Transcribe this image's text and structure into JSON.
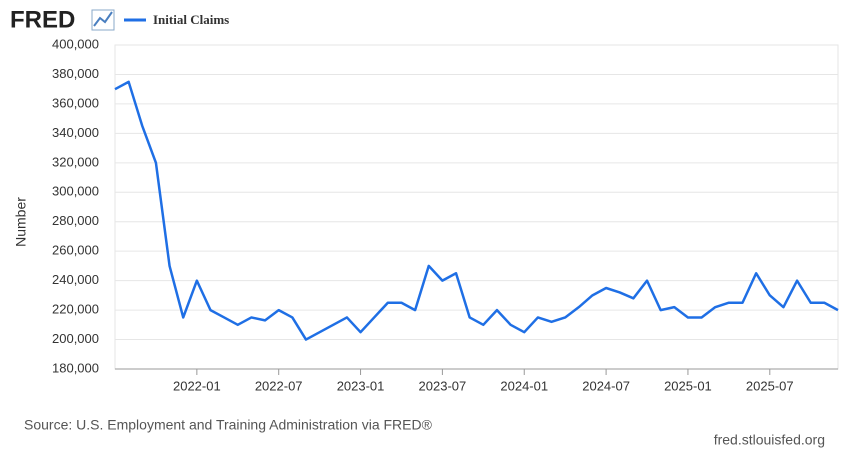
{
  "logo": "FRED",
  "source": "Source: U.S. Employment and Training Administration via FRED®",
  "url": "fred.stlouisfed.org",
  "chart_data": {
    "type": "line",
    "y_label": "Number",
    "x": [
      "2021-07",
      "2021-08",
      "2021-09",
      "2021-10",
      "2021-11",
      "2021-12",
      "2022-01",
      "2022-02",
      "2022-03",
      "2022-04",
      "2022-05",
      "2022-06",
      "2022-07",
      "2022-08",
      "2022-09",
      "2022-10",
      "2022-11",
      "2022-12",
      "2023-01",
      "2023-02",
      "2023-03",
      "2023-04",
      "2023-05",
      "2023-06",
      "2023-07",
      "2023-08",
      "2023-09",
      "2023-10",
      "2023-11",
      "2023-12",
      "2024-01",
      "2024-02",
      "2024-03",
      "2024-04",
      "2024-05",
      "2024-06",
      "2024-07",
      "2024-08",
      "2024-09",
      "2024-10",
      "2024-11",
      "2024-12",
      "2025-01",
      "2025-02",
      "2025-03",
      "2025-04",
      "2025-05",
      "2025-06",
      "2025-07",
      "2025-08",
      "2025-09",
      "2025-10",
      "2025-11",
      "2025-12"
    ],
    "series": [
      {
        "name": "Initial Claims",
        "color": "#1f6fe5",
        "values": [
          370000,
          375000,
          345000,
          320000,
          250000,
          215000,
          240000,
          220000,
          215000,
          210000,
          215000,
          213000,
          220000,
          215000,
          200000,
          205000,
          210000,
          215000,
          205000,
          215000,
          225000,
          225000,
          220000,
          250000,
          240000,
          245000,
          215000,
          210000,
          220000,
          210000,
          205000,
          215000,
          212000,
          215000,
          222000,
          230000,
          235000,
          232000,
          228000,
          240000,
          220000,
          222000,
          215000,
          215000,
          222000,
          225000,
          225000,
          245000,
          230000,
          222000,
          240000,
          225000,
          225000,
          220000
        ]
      }
    ],
    "xlim": [
      "2021-07",
      "2025-12"
    ],
    "xticks": [
      "2022-01",
      "2022-07",
      "2023-01",
      "2023-07",
      "2024-01",
      "2024-07",
      "2025-01",
      "2025-07"
    ],
    "ylim": [
      180000,
      400000
    ],
    "yticks": [
      {
        "value": 180000,
        "label": "180,000"
      },
      {
        "value": 200000,
        "label": "200,000"
      },
      {
        "value": 220000,
        "label": "220,000"
      },
      {
        "value": 240000,
        "label": "240,000"
      },
      {
        "value": 260000,
        "label": "260,000"
      },
      {
        "value": 280000,
        "label": "280,000"
      },
      {
        "value": 300000,
        "label": "300,000"
      },
      {
        "value": 320000,
        "label": "320,000"
      },
      {
        "value": 340000,
        "label": "340,000"
      },
      {
        "value": 360000,
        "label": "360,000"
      },
      {
        "value": 380000,
        "label": "380,000"
      },
      {
        "value": 400000,
        "label": "400,000"
      }
    ],
    "grid": true
  }
}
